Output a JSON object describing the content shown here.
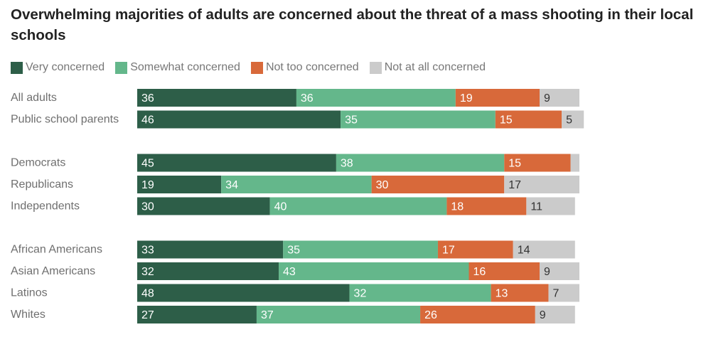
{
  "chart_data": {
    "type": "bar",
    "orientation": "horizontal",
    "stacked": true,
    "title": "Overwhelming majorities of adults are concerned about the threat of a mass shooting in their local schools",
    "xlabel": "",
    "ylabel": "",
    "xlim": [
      0,
      100
    ],
    "grid": false,
    "legend_position": "top-left",
    "categories": [
      "All adults",
      "Public school parents",
      "Democrats",
      "Republicans",
      "Independents",
      "African Americans",
      "Asian Americans",
      "Latinos",
      "Whites"
    ],
    "groups": [
      [
        "All adults",
        "Public school parents"
      ],
      [
        "Democrats",
        "Republicans",
        "Independents"
      ],
      [
        "African Americans",
        "Asian Americans",
        "Latinos",
        "Whites"
      ]
    ],
    "series": [
      {
        "name": "Very concerned",
        "color": "#2d5e48",
        "label_color": "#ffffff",
        "values": [
          36,
          46,
          45,
          19,
          30,
          33,
          32,
          48,
          27
        ]
      },
      {
        "name": "Somewhat concerned",
        "color": "#64b78b",
        "label_color": "#ffffff",
        "values": [
          36,
          35,
          38,
          34,
          40,
          35,
          43,
          32,
          37
        ]
      },
      {
        "name": "Not too concerned",
        "color": "#d8693a",
        "label_color": "#ffffff",
        "values": [
          19,
          15,
          15,
          30,
          18,
          17,
          16,
          13,
          26
        ]
      },
      {
        "name": "Not at all concerned",
        "color": "#cbcbcb",
        "label_color": "#333333",
        "values": [
          9,
          5,
          2,
          17,
          11,
          14,
          9,
          7,
          9
        ],
        "hidden_labels": [
          2
        ]
      }
    ]
  }
}
